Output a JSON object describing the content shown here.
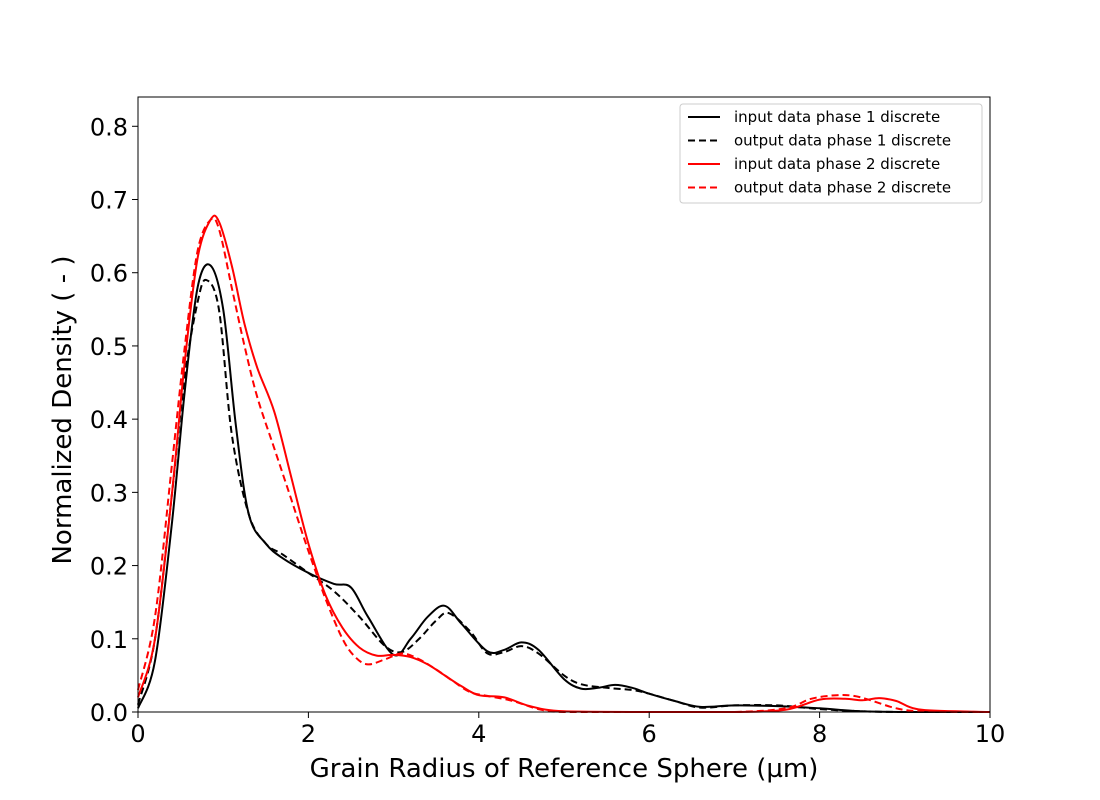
{
  "chart_data": {
    "type": "line",
    "title": "",
    "xlabel": "Grain Radius of Reference Sphere (µm)",
    "ylabel": "Normalized Density ( - )",
    "xlim": [
      0,
      10
    ],
    "ylim": [
      0,
      0.84
    ],
    "xticks": [
      0,
      2,
      4,
      6,
      8,
      10
    ],
    "xtick_labels": [
      "0",
      "2",
      "4",
      "6",
      "8",
      "10"
    ],
    "yticks": [
      0.0,
      0.1,
      0.2,
      0.3,
      0.4,
      0.5,
      0.6,
      0.7,
      0.8
    ],
    "ytick_labels": [
      "0.0",
      "0.1",
      "0.2",
      "0.3",
      "0.4",
      "0.5",
      "0.6",
      "0.7",
      "0.8"
    ],
    "grid": false,
    "legend_position": "top-right",
    "series": [
      {
        "name": "input data phase 1 discrete",
        "color": "#000000",
        "style": "solid",
        "x": [
          0,
          0.2,
          0.4,
          0.55,
          0.7,
          0.85,
          1.0,
          1.15,
          1.3,
          1.5,
          1.7,
          2.0,
          2.3,
          2.5,
          2.7,
          3.0,
          3.2,
          3.4,
          3.6,
          3.8,
          4.1,
          4.3,
          4.5,
          4.7,
          5.0,
          5.2,
          5.4,
          5.6,
          5.8,
          6.0,
          6.3,
          6.6,
          7.0,
          7.5,
          8.0,
          8.5,
          9.0,
          10.0
        ],
        "y": [
          0.005,
          0.07,
          0.26,
          0.44,
          0.58,
          0.61,
          0.55,
          0.39,
          0.27,
          0.23,
          0.21,
          0.19,
          0.175,
          0.17,
          0.13,
          0.078,
          0.1,
          0.13,
          0.145,
          0.12,
          0.083,
          0.085,
          0.095,
          0.085,
          0.045,
          0.032,
          0.033,
          0.037,
          0.033,
          0.025,
          0.015,
          0.007,
          0.009,
          0.008,
          0.005,
          0.001,
          0.0,
          0.0
        ]
      },
      {
        "name": "output data phase 1 discrete",
        "color": "#000000",
        "style": "dashed",
        "x": [
          0,
          0.2,
          0.4,
          0.55,
          0.7,
          0.8,
          0.95,
          1.1,
          1.3,
          1.5,
          1.7,
          2.0,
          2.3,
          2.6,
          2.9,
          3.1,
          3.3,
          3.5,
          3.65,
          3.9,
          4.1,
          4.3,
          4.5,
          4.7,
          5.0,
          5.2,
          5.5,
          5.8,
          6.0,
          6.3,
          6.6,
          7.0,
          7.5,
          8.0,
          8.5,
          9.0,
          10.0
        ],
        "y": [
          0.01,
          0.1,
          0.3,
          0.46,
          0.56,
          0.59,
          0.55,
          0.38,
          0.27,
          0.23,
          0.215,
          0.19,
          0.165,
          0.13,
          0.09,
          0.082,
          0.1,
          0.125,
          0.135,
          0.11,
          0.08,
          0.082,
          0.09,
          0.08,
          0.05,
          0.038,
          0.033,
          0.03,
          0.025,
          0.015,
          0.006,
          0.009,
          0.009,
          0.004,
          0.001,
          0.0,
          0.0
        ]
      },
      {
        "name": "input data phase 2 discrete",
        "color": "#ff0000",
        "style": "solid",
        "x": [
          0,
          0.2,
          0.4,
          0.55,
          0.7,
          0.85,
          0.95,
          1.1,
          1.25,
          1.4,
          1.6,
          1.8,
          2.0,
          2.2,
          2.4,
          2.6,
          2.8,
          3.0,
          3.2,
          3.4,
          3.6,
          3.8,
          4.0,
          4.3,
          4.6,
          5.0,
          6.0,
          7.0,
          7.6,
          8.0,
          8.3,
          8.5,
          8.7,
          8.9,
          9.2,
          10.0
        ],
        "y": [
          0.02,
          0.1,
          0.3,
          0.48,
          0.62,
          0.672,
          0.67,
          0.61,
          0.53,
          0.47,
          0.41,
          0.32,
          0.23,
          0.16,
          0.115,
          0.088,
          0.077,
          0.078,
          0.075,
          0.065,
          0.05,
          0.035,
          0.023,
          0.02,
          0.008,
          0.001,
          0.0,
          0.0,
          0.003,
          0.017,
          0.018,
          0.016,
          0.019,
          0.015,
          0.003,
          0.0
        ]
      },
      {
        "name": "output data phase 2 discrete",
        "color": "#ff0000",
        "style": "dashed",
        "x": [
          0,
          0.2,
          0.4,
          0.55,
          0.7,
          0.85,
          0.95,
          1.1,
          1.25,
          1.4,
          1.6,
          1.8,
          2.0,
          2.2,
          2.4,
          2.55,
          2.7,
          2.9,
          3.1,
          3.3,
          3.5,
          3.7,
          3.9,
          4.1,
          4.4,
          4.7,
          5.0,
          6.0,
          7.0,
          7.6,
          7.9,
          8.2,
          8.4,
          8.6,
          8.9,
          9.2,
          10.0
        ],
        "y": [
          0.03,
          0.13,
          0.34,
          0.5,
          0.63,
          0.672,
          0.66,
          0.58,
          0.5,
          0.43,
          0.36,
          0.29,
          0.22,
          0.155,
          0.1,
          0.075,
          0.065,
          0.072,
          0.08,
          0.072,
          0.058,
          0.042,
          0.027,
          0.022,
          0.015,
          0.004,
          0.0,
          0.0,
          0.0,
          0.005,
          0.018,
          0.023,
          0.022,
          0.016,
          0.005,
          0.001,
          0.0
        ]
      }
    ]
  }
}
